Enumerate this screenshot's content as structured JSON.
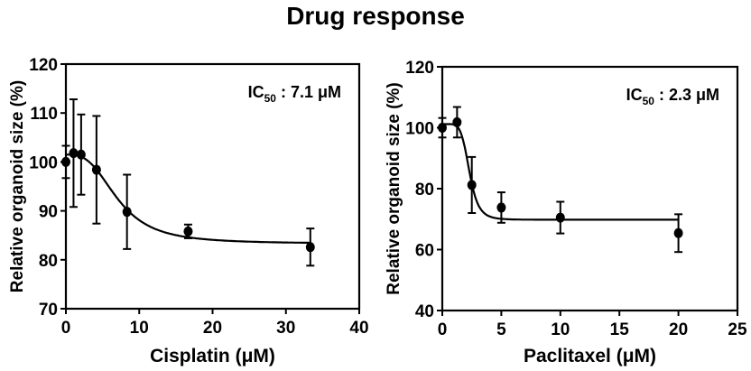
{
  "title": "Drug response",
  "chart_data": [
    {
      "type": "line",
      "subtype": "dose-response with error bars",
      "title": "",
      "xlabel": "Cisplatin (μM)",
      "ylabel": "Relative organoid size (%)",
      "xlim": [
        0,
        40
      ],
      "ylim": [
        70,
        120
      ],
      "xticks": [
        0,
        10,
        20,
        30,
        40
      ],
      "yticks": [
        70,
        80,
        90,
        100,
        110,
        120
      ],
      "grid": false,
      "annotation": {
        "prefix": "IC",
        "sub": "50",
        "suffix": " : 7.1 μM"
      },
      "x": [
        0,
        1.04,
        2.08,
        4.17,
        8.33,
        16.67,
        33.33
      ],
      "values": [
        100.0,
        101.8,
        101.5,
        98.4,
        89.8,
        85.8,
        82.6
      ],
      "error": [
        3.3,
        11.0,
        8.2,
        11.0,
        7.6,
        1.4,
        3.8
      ],
      "fit": {
        "top": 101.5,
        "bottom": 83.3,
        "ic50": 7.1,
        "hill": 3.0
      }
    },
    {
      "type": "line",
      "subtype": "dose-response with error bars",
      "title": "",
      "xlabel": "Paclitaxel (μM)",
      "ylabel": "Relative organoid size (%)",
      "xlim": [
        0,
        25
      ],
      "ylim": [
        40,
        120
      ],
      "xticks": [
        0,
        5,
        10,
        15,
        20,
        25
      ],
      "yticks": [
        40,
        60,
        80,
        100,
        120
      ],
      "grid": false,
      "annotation": {
        "prefix": "IC",
        "sub": "50",
        "suffix": " : 2.3 μM"
      },
      "x": [
        0,
        1.25,
        2.5,
        5,
        10,
        20
      ],
      "values": [
        100.0,
        101.8,
        81.2,
        73.8,
        70.5,
        65.4
      ],
      "error": [
        3.2,
        5.0,
        9.2,
        5.0,
        5.2,
        6.2
      ],
      "fit": {
        "top": 101.2,
        "bottom": 69.8,
        "ic50": 2.3,
        "hill": 6.0
      }
    }
  ]
}
